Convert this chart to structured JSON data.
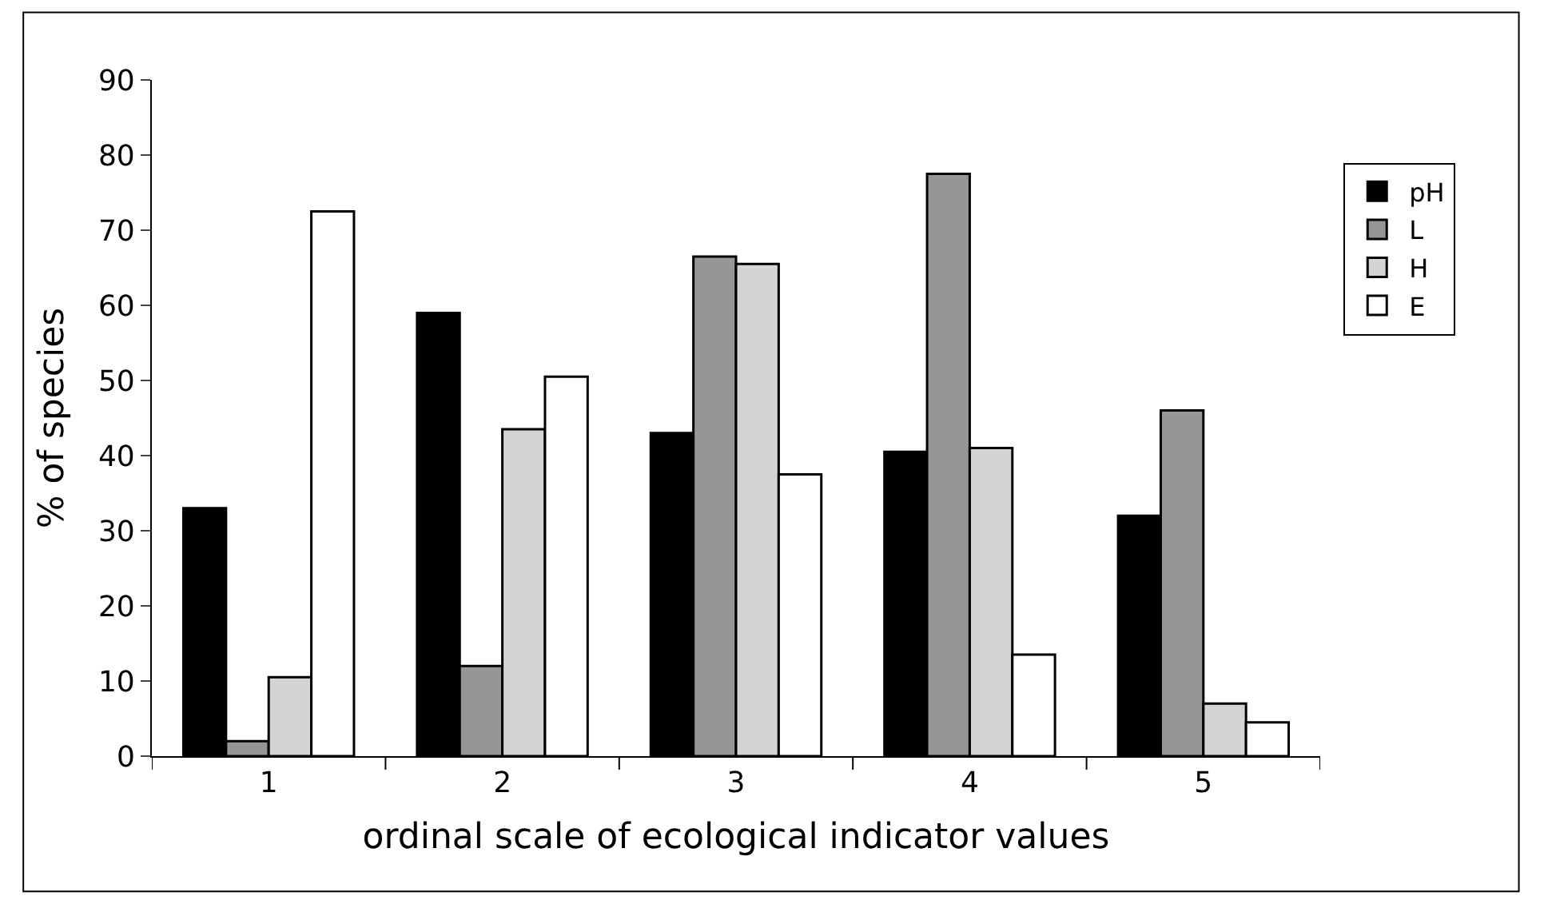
{
  "chart_data": {
    "type": "bar",
    "xlabel": "ordinal scale of ecological indicator values",
    "ylabel": "% of species",
    "categories": [
      "1",
      "2",
      "3",
      "4",
      "5"
    ],
    "series": [
      {
        "name": "pH",
        "color": "#000000",
        "values": [
          33,
          59,
          43,
          40.5,
          32
        ]
      },
      {
        "name": "L",
        "color": "#969696",
        "values": [
          2,
          12,
          66.5,
          77.5,
          46
        ]
      },
      {
        "name": "H",
        "color": "#d4d4d4",
        "values": [
          10.5,
          43.5,
          65.5,
          41,
          7
        ]
      },
      {
        "name": "E",
        "color": "#ffffff",
        "values": [
          72.5,
          50.5,
          37.5,
          13.5,
          4.5
        ]
      }
    ],
    "ylim": [
      0,
      90
    ],
    "yticks": [
      0,
      10,
      20,
      30,
      40,
      50,
      60,
      70,
      80,
      90
    ],
    "legend": "right"
  }
}
